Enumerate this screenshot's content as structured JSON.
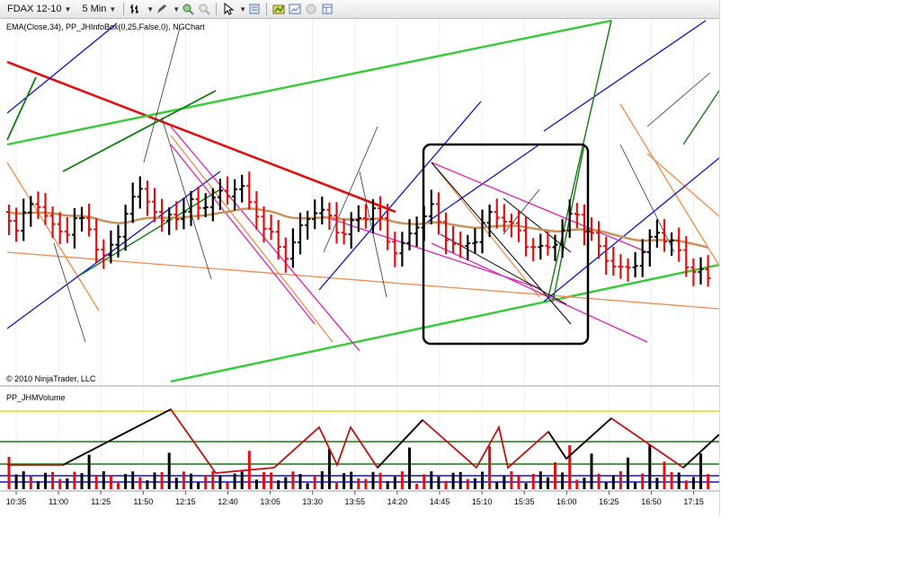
{
  "toolbar": {
    "instrument": "FDAX 12-10",
    "interval": "5 Min",
    "icons": [
      "bar-style-icon",
      "draw-pencil-icon",
      "zoom-in-icon",
      "zoom-out-icon",
      "cursor-icon",
      "properties-icon",
      "strategy-icon",
      "chart-trader-icon",
      "lock-icon",
      "data-box-icon"
    ]
  },
  "price_panel": {
    "indicators_label": "EMA(Close,34), PP_JHInfoBox(0,25,False,0), NGChart",
    "copyright": "© 2010 NinjaTrader, LLC"
  },
  "volume_panel": {
    "label": "PP_JHMVolume"
  },
  "time_axis": [
    "10:35",
    "11:00",
    "11:25",
    "11:50",
    "12:15",
    "12:40",
    "13:05",
    "13:30",
    "13:55",
    "14:20",
    "14:45",
    "15:10",
    "15:35",
    "16:00",
    "16:25",
    "16:50",
    "17:15"
  ],
  "colors": {
    "up_bar": "#000000",
    "down_bar": "#e01010",
    "ema": "#c8925a",
    "trend_red": "#e01010",
    "trend_green": "#33cc33",
    "dark_green": "#127a12",
    "blue": "#1010cc",
    "magenta": "#e020b0",
    "orange": "#f08a4a",
    "yellow_line": "#f0d020"
  }
}
